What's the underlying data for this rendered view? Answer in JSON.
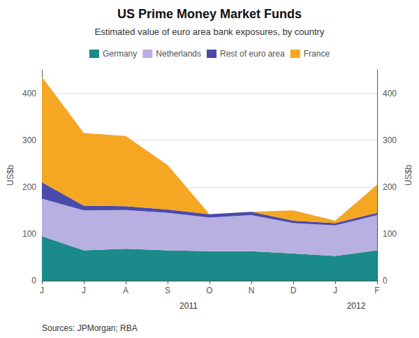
{
  "chart_data": {
    "type": "area",
    "stacked": true,
    "title": "US Prime Money Market Funds",
    "subtitle": "Estimated value of euro area bank exposures, by country",
    "ylabel": "US$b",
    "y2label": "US$b",
    "source": "Sources: JPMorgan; RBA",
    "annotations": [
      "2011",
      "2012"
    ],
    "categories": [
      "J",
      "J",
      "A",
      "S",
      "O",
      "N",
      "D",
      "J",
      "F"
    ],
    "series": [
      {
        "name": "Germany",
        "color": "#1a8a8a",
        "values": [
          95,
          65,
          68,
          65,
          63,
          63,
          58,
          53,
          65
        ]
      },
      {
        "name": "Netherlands",
        "color": "#b8b0e0",
        "values": [
          80,
          85,
          83,
          80,
          72,
          77,
          65,
          65,
          75
        ]
      },
      {
        "name": "Rest of euro area",
        "color": "#4a4aaa",
        "values": [
          35,
          10,
          8,
          7,
          7,
          7,
          5,
          5,
          5
        ]
      },
      {
        "name": "France",
        "color": "#f5a623",
        "values": [
          225,
          155,
          150,
          95,
          0,
          0,
          22,
          5,
          60
        ]
      }
    ],
    "ylim": [
      0,
      450
    ],
    "yticks": [
      0,
      100,
      200,
      300,
      400
    ],
    "y2lim": [
      0,
      450
    ],
    "y2ticks": [
      0,
      100,
      200,
      300,
      400
    ],
    "grid": true,
    "legend": "top"
  }
}
